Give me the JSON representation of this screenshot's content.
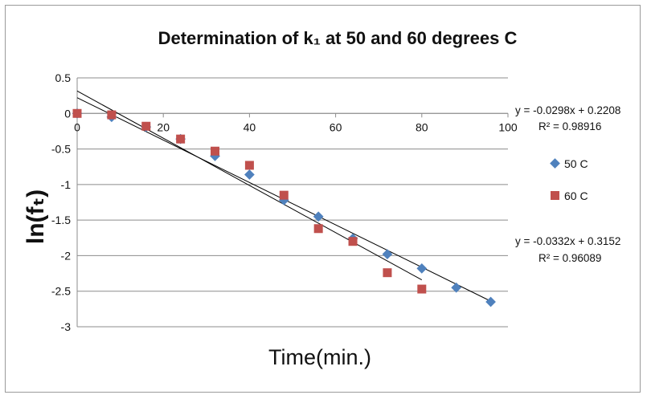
{
  "chart_data": {
    "type": "scatter",
    "title": "Determination  of k₁ at 50 and 60 degrees C",
    "xlabel": "Time(min.)",
    "ylabel": "ln(fₜ)",
    "xlim": [
      0,
      100
    ],
    "ylim": [
      -3,
      0.5
    ],
    "xticks": [
      0,
      20,
      40,
      60,
      80,
      100
    ],
    "yticks": [
      0.5,
      0,
      -0.5,
      -1,
      -1.5,
      -2,
      -2.5,
      -3
    ],
    "xtick_labels": [
      "0",
      "20",
      "40",
      "60",
      "80",
      "100"
    ],
    "ytick_labels": [
      "0.5",
      "0",
      "-0.5",
      "-1",
      "-1.5",
      "-2",
      "-2.5",
      "-3"
    ],
    "grid": "horizontal",
    "legend_position": "right",
    "series": [
      {
        "name": "50 C",
        "marker": "diamond",
        "color": "#4F81BD",
        "x": [
          0,
          8,
          16,
          24,
          32,
          40,
          48,
          56,
          64,
          72,
          80,
          88,
          96
        ],
        "y": [
          0,
          -0.05,
          -0.19,
          -0.36,
          -0.6,
          -0.86,
          -1.22,
          -1.45,
          -1.76,
          -1.98,
          -2.18,
          -2.45,
          -2.65
        ],
        "trendline": {
          "slope": -0.0298,
          "intercept": 0.2208,
          "x_range": [
            0,
            96
          ],
          "equation": "y = -0.0298x + 0.2208",
          "r2": "R² = 0.98916"
        }
      },
      {
        "name": "60 C",
        "marker": "square",
        "color": "#C0504D",
        "x": [
          0,
          8,
          16,
          24,
          32,
          40,
          48,
          56,
          64,
          72,
          80
        ],
        "y": [
          0,
          -0.02,
          -0.18,
          -0.36,
          -0.53,
          -0.73,
          -1.15,
          -1.62,
          -1.8,
          -2.24,
          -2.47
        ],
        "trendline": {
          "slope": -0.0332,
          "intercept": 0.3152,
          "x_range": [
            0,
            80
          ],
          "equation": "y = -0.0332x + 0.3152",
          "r2": "R² = 0.96089"
        }
      }
    ]
  }
}
